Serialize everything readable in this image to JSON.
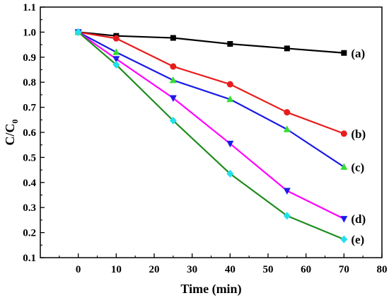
{
  "chart_data": {
    "type": "line",
    "xlabel": "Time (min)",
    "ylabel": {
      "main": "C/C",
      "subscript": "0"
    },
    "xlim": [
      -10,
      80
    ],
    "ylim": [
      0.1,
      1.1
    ],
    "xticks": [
      "0",
      "10",
      "20",
      "30",
      "40",
      "50",
      "60",
      "70",
      "80"
    ],
    "yticks": [
      "0.1",
      "0.2",
      "0.3",
      "0.4",
      "0.5",
      "0.6",
      "0.7",
      "0.8",
      "0.9",
      "1.0",
      "1.1"
    ],
    "x": [
      0,
      10,
      25,
      40,
      55,
      70
    ],
    "series": [
      {
        "name": "(a)",
        "marker": "square",
        "color": "#000000",
        "values": [
          1.0,
          0.985,
          0.977,
          0.953,
          0.935,
          0.917
        ]
      },
      {
        "name": "(b)",
        "marker": "circle",
        "color": "#e81c1c",
        "values": [
          1.0,
          0.975,
          0.863,
          0.792,
          0.68,
          0.595
        ]
      },
      {
        "name": "(c)",
        "marker": "triangle-up",
        "color": "#1a1ae8",
        "markerColor": "#33dd33",
        "values": [
          1.0,
          0.92,
          0.808,
          0.732,
          0.612,
          0.462
        ]
      },
      {
        "name": "(d)",
        "marker": "triangle-down",
        "color": "#ff00ff",
        "markerColor": "#1a1ae8",
        "values": [
          1.0,
          0.893,
          0.737,
          0.555,
          0.367,
          0.255
        ]
      },
      {
        "name": "(e)",
        "marker": "diamond",
        "color": "#1e8c1e",
        "markerColor": "#22e0ee",
        "values": [
          1.0,
          0.87,
          0.647,
          0.435,
          0.267,
          0.173
        ]
      }
    ]
  }
}
